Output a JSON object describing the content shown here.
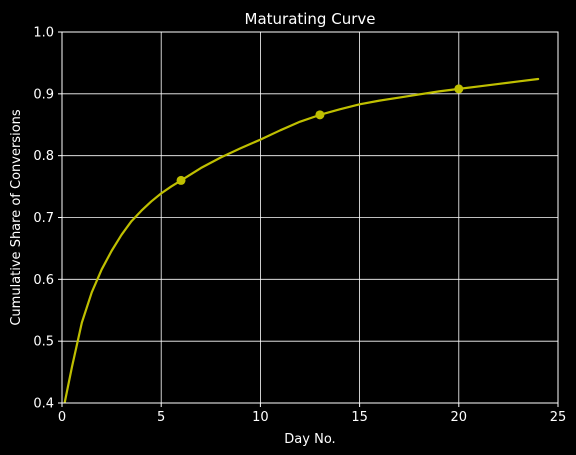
{
  "chart_data": {
    "type": "line",
    "title": "Maturating Curve",
    "xlabel": "Day No.",
    "ylabel": "Cumulative Share of Conversions",
    "xlim": [
      0,
      25
    ],
    "ylim": [
      0.4,
      1.0
    ],
    "x_ticks": [
      "0",
      "5",
      "10",
      "15",
      "20",
      "25"
    ],
    "y_ticks": [
      "0.4",
      "0.5",
      "0.6",
      "0.7",
      "0.8",
      "0.9",
      "1.0"
    ],
    "grid": true,
    "series": [
      {
        "color": "#bfbf00",
        "x": [
          0.1,
          0.5,
          1,
          1.5,
          2,
          2.5,
          3,
          3.5,
          4,
          4.5,
          5,
          5.5,
          6,
          7,
          8,
          9,
          10,
          11,
          12,
          13,
          14,
          15,
          16,
          17,
          18,
          19,
          20,
          21,
          22,
          23,
          24
        ],
        "y": [
          0.395,
          0.458,
          0.53,
          0.579,
          0.616,
          0.646,
          0.672,
          0.694,
          0.711,
          0.726,
          0.739,
          0.75,
          0.76,
          0.78,
          0.797,
          0.812,
          0.826,
          0.841,
          0.855,
          0.866,
          0.875,
          0.883,
          0.889,
          0.894,
          0.899,
          0.904,
          0.908,
          0.912,
          0.916,
          0.92,
          0.924
        ]
      }
    ],
    "markers": {
      "color": "#bfbf00",
      "x": [
        6,
        13,
        20
      ],
      "y": [
        0.76,
        0.866,
        0.908
      ]
    },
    "colors": {
      "background": "#000000",
      "axes": "#ffffff",
      "grid": "#ffffff",
      "text": "#ffffff"
    }
  }
}
